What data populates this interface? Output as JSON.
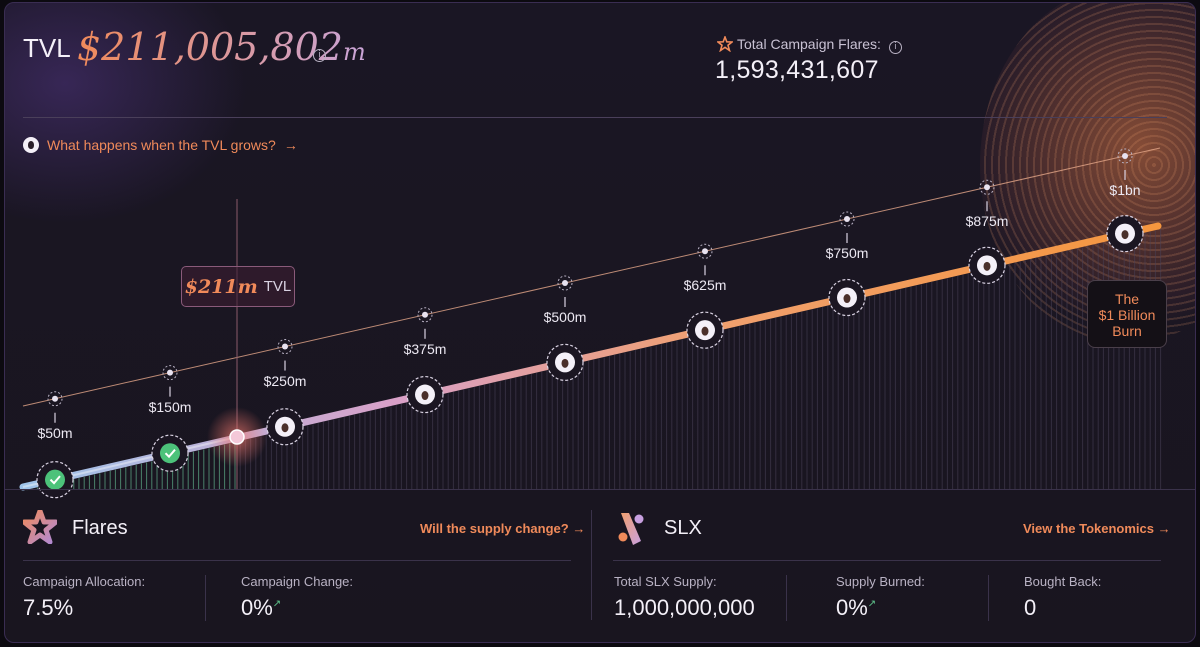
{
  "header": {
    "tvl_label": "TVL",
    "tvl_value": "$211,005,802",
    "tvl_unit": "m",
    "total_flares_label": "Total Campaign Flares:",
    "total_flares_value": "1,593,431,607"
  },
  "prompt": {
    "question": "What happens when the TVL grows?",
    "arrow": "→"
  },
  "current": {
    "value": "$211m",
    "unit": "TVL"
  },
  "milestones": [
    {
      "label": "$50m",
      "reached": true
    },
    {
      "label": "$150m",
      "reached": true
    },
    {
      "label": "$250m",
      "reached": false
    },
    {
      "label": "$375m",
      "reached": false
    },
    {
      "label": "$500m",
      "reached": false
    },
    {
      "label": "$625m",
      "reached": false
    },
    {
      "label": "$750m",
      "reached": false
    },
    {
      "label": "$875m",
      "reached": false
    },
    {
      "label": "$1bn",
      "reached": false
    }
  ],
  "burn": {
    "line1": "The",
    "line2": "$1 Billion",
    "line3": "Burn"
  },
  "flares": {
    "title": "Flares",
    "link": "Will the supply change?",
    "stats": [
      {
        "label": "Campaign Allocation:",
        "value": "7.5%"
      },
      {
        "label": "Campaign Change:",
        "value": "0%"
      }
    ]
  },
  "slx": {
    "title": "SLX",
    "link": "View the Tokenomics",
    "stats": [
      {
        "label": "Total SLX Supply:",
        "value": "1,000,000,000"
      },
      {
        "label": "Supply Burned:",
        "value": "0%"
      },
      {
        "label": "Bought Back:",
        "value": "0"
      }
    ]
  },
  "colors": {
    "accent": "#f08a5a",
    "success": "#4cc27a",
    "text": "#f4f0f8"
  },
  "icons": {
    "info": "info-icon",
    "flame": "flame-icon",
    "star": "star-icon",
    "slx_logo": "slx-logo-icon",
    "check": "check-icon"
  }
}
